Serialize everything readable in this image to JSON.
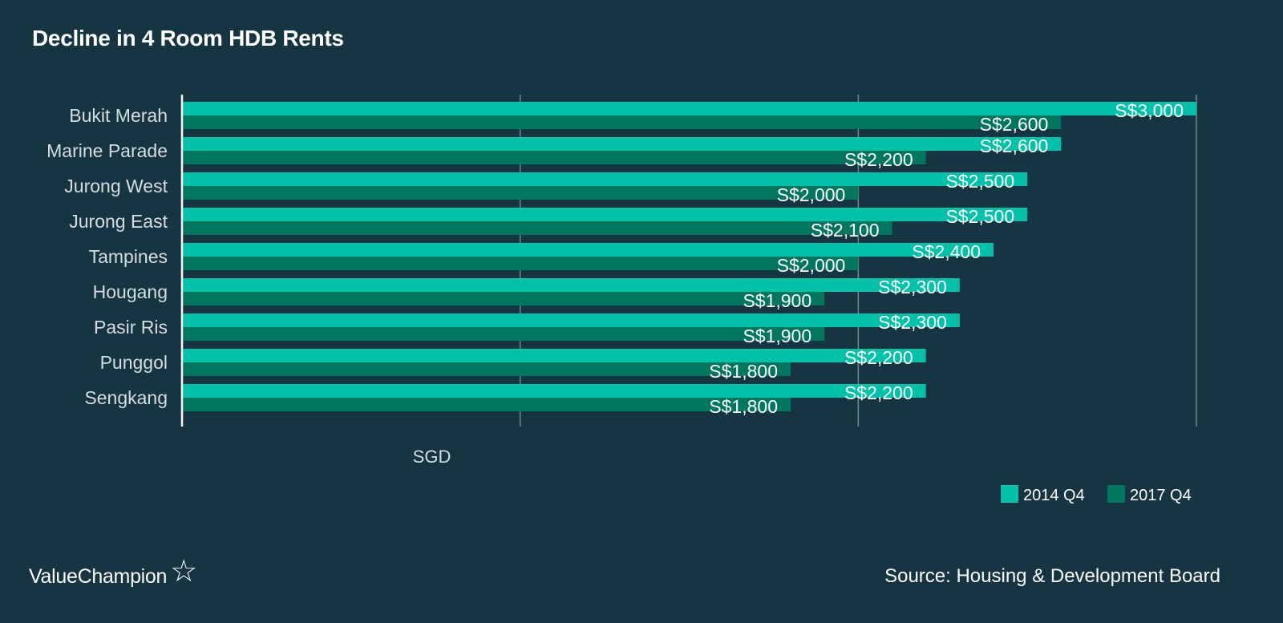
{
  "title": "Decline in 4 Room HDB Rents",
  "brand": {
    "name": "ValueChampion",
    "logo_icon": "star-outline-icon"
  },
  "source": "Source: Housing & Development Board",
  "colors": {
    "background": "#163542",
    "series_2014": "#00c2a8",
    "series_2017": "#00765f",
    "grid": "#6f8891",
    "category_text": "#d5dde0"
  },
  "chart_data": {
    "type": "bar",
    "orientation": "horizontal",
    "title": "Decline in 4 Room HDB Rents",
    "xlabel": "SGD",
    "ylabel": "",
    "xlim": [
      0,
      3000
    ],
    "grid": true,
    "legend_position": "bottom-right",
    "categories": [
      "Bukit Merah",
      "Marine Parade",
      "Jurong West",
      "Jurong East",
      "Tampines",
      "Hougang",
      "Pasir Ris",
      "Punggol",
      "Sengkang"
    ],
    "series": [
      {
        "name": "2014 Q4",
        "values": [
          3000,
          2600,
          2500,
          2500,
          2400,
          2300,
          2300,
          2200,
          2200
        ],
        "labels": [
          "S$3,000",
          "S$2,600",
          "S$2,500",
          "S$2,500",
          "S$2,400",
          "S$2,300",
          "S$2,300",
          "S$2,200",
          "S$2,200"
        ]
      },
      {
        "name": "2017 Q4",
        "values": [
          2600,
          2200,
          2000,
          2100,
          2000,
          1900,
          1900,
          1800,
          1800
        ],
        "labels": [
          "S$2,600",
          "S$2,200",
          "S$2,000",
          "S$2,100",
          "S$2,000",
          "S$1,900",
          "S$1,900",
          "S$1,800",
          "S$1,800"
        ]
      }
    ]
  }
}
